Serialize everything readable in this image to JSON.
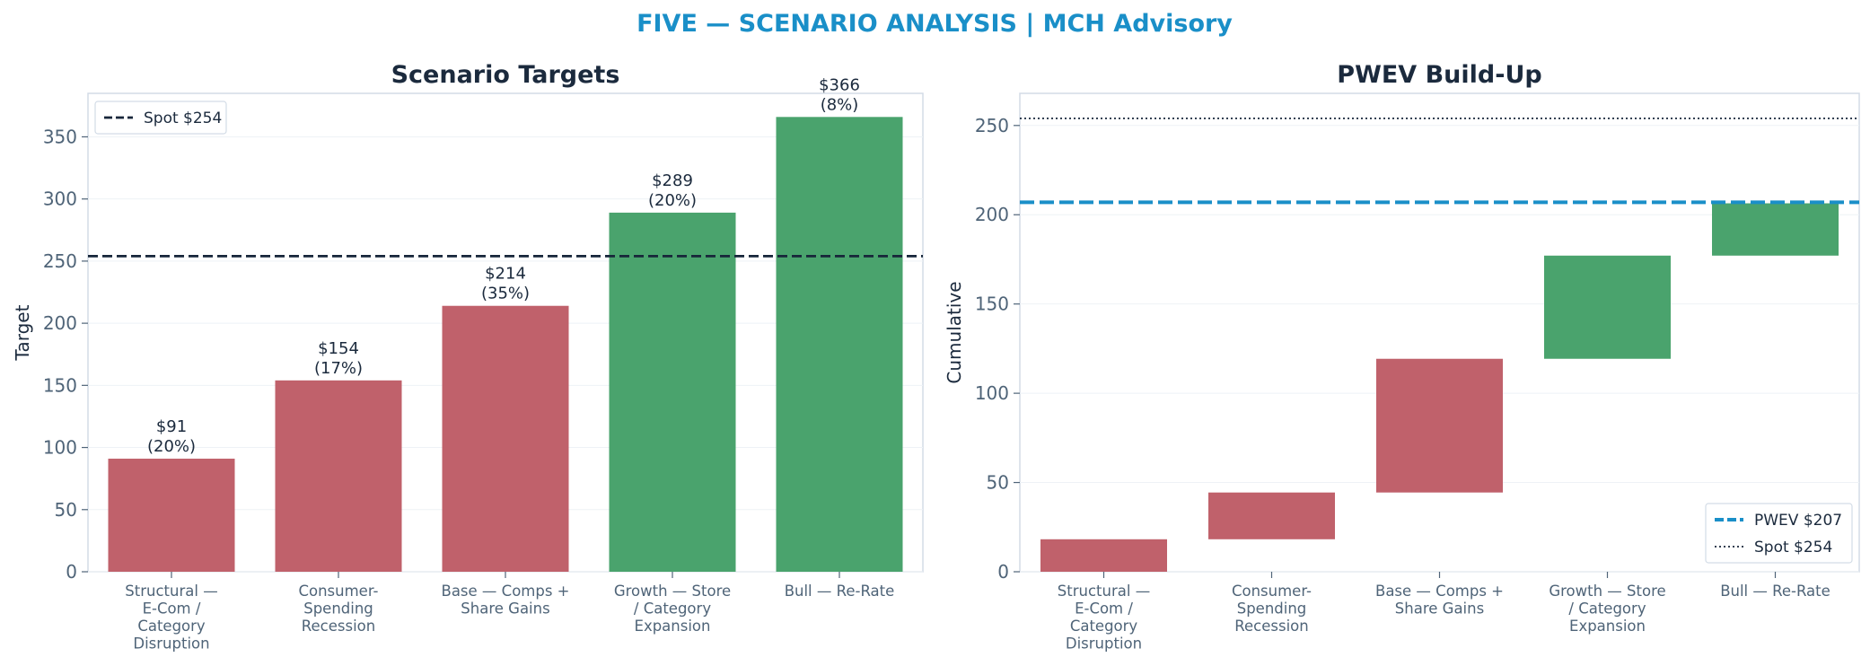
{
  "header": {
    "title": "FIVE — SCENARIO ANALYSIS | MCH Advisory"
  },
  "colors": {
    "title": "#1a8fc8",
    "bear": "#c0616b",
    "bull": "#4aa36d",
    "spot": "#17263a",
    "pwev": "#1a8fc8",
    "axis": "#d3dce6",
    "grid": "#eef2f6",
    "text": "#1b2a3d",
    "tick": "#4f6478"
  },
  "chart_data": [
    {
      "type": "bar",
      "title": "Scenario Targets",
      "xlabel": "",
      "ylabel": "Target",
      "ylim": [
        0,
        385
      ],
      "yticks": [
        0,
        50,
        100,
        150,
        200,
        250,
        300,
        350
      ],
      "categories": [
        [
          "Structural —",
          "E-Com /",
          "Category",
          "Disruption"
        ],
        [
          "Consumer-",
          "Spending",
          "Recession"
        ],
        [
          "Base — Comps +",
          "Share Gains"
        ],
        [
          "Growth — Store",
          "/ Category",
          "Expansion"
        ],
        [
          "Bull — Re-Rate"
        ]
      ],
      "values": [
        91,
        154,
        214,
        289,
        366
      ],
      "bar_labels": [
        [
          "$91",
          "(20%)"
        ],
        [
          "$154",
          "(17%)"
        ],
        [
          "$214",
          "(35%)"
        ],
        [
          "$289",
          "(20%)"
        ],
        [
          "$366",
          "(8%)"
        ]
      ],
      "bar_colors": [
        "bear",
        "bear",
        "bear",
        "bull",
        "bull"
      ],
      "reference_lines": [
        {
          "label": "Spot $254",
          "value": 254,
          "style": "dashed",
          "color": "spot"
        }
      ],
      "legend": {
        "placement": "top-left",
        "entries": [
          "Spot $254"
        ]
      },
      "grid": true
    },
    {
      "type": "bar",
      "subtype": "waterfall",
      "title": "PWEV Build-Up",
      "xlabel": "",
      "ylabel": "Cumulative",
      "ylim": [
        0,
        268
      ],
      "yticks": [
        0,
        50,
        100,
        150,
        200,
        250
      ],
      "categories": [
        [
          "Structural —",
          "E-Com /",
          "Category",
          "Disruption"
        ],
        [
          "Consumer-",
          "Spending",
          "Recession"
        ],
        [
          "Base — Comps +",
          "Share Gains"
        ],
        [
          "Growth — Store",
          "/ Category",
          "Expansion"
        ],
        [
          "Bull — Re-Rate"
        ]
      ],
      "segments": [
        {
          "start": 0,
          "end": 18.2
        },
        {
          "start": 18.2,
          "end": 44.4
        },
        {
          "start": 44.4,
          "end": 119.3
        },
        {
          "start": 119.3,
          "end": 177.1
        },
        {
          "start": 177.1,
          "end": 206.4
        }
      ],
      "bar_colors": [
        "bear",
        "bear",
        "bear",
        "bull",
        "bull"
      ],
      "reference_lines": [
        {
          "label": "PWEV $207",
          "value": 207,
          "style": "dashed",
          "color": "pwev"
        },
        {
          "label": "Spot $254",
          "value": 254,
          "style": "dotted",
          "color": "spot"
        }
      ],
      "legend": {
        "placement": "bottom-right",
        "entries": [
          "PWEV $207",
          "Spot $254"
        ]
      },
      "grid": true
    }
  ]
}
